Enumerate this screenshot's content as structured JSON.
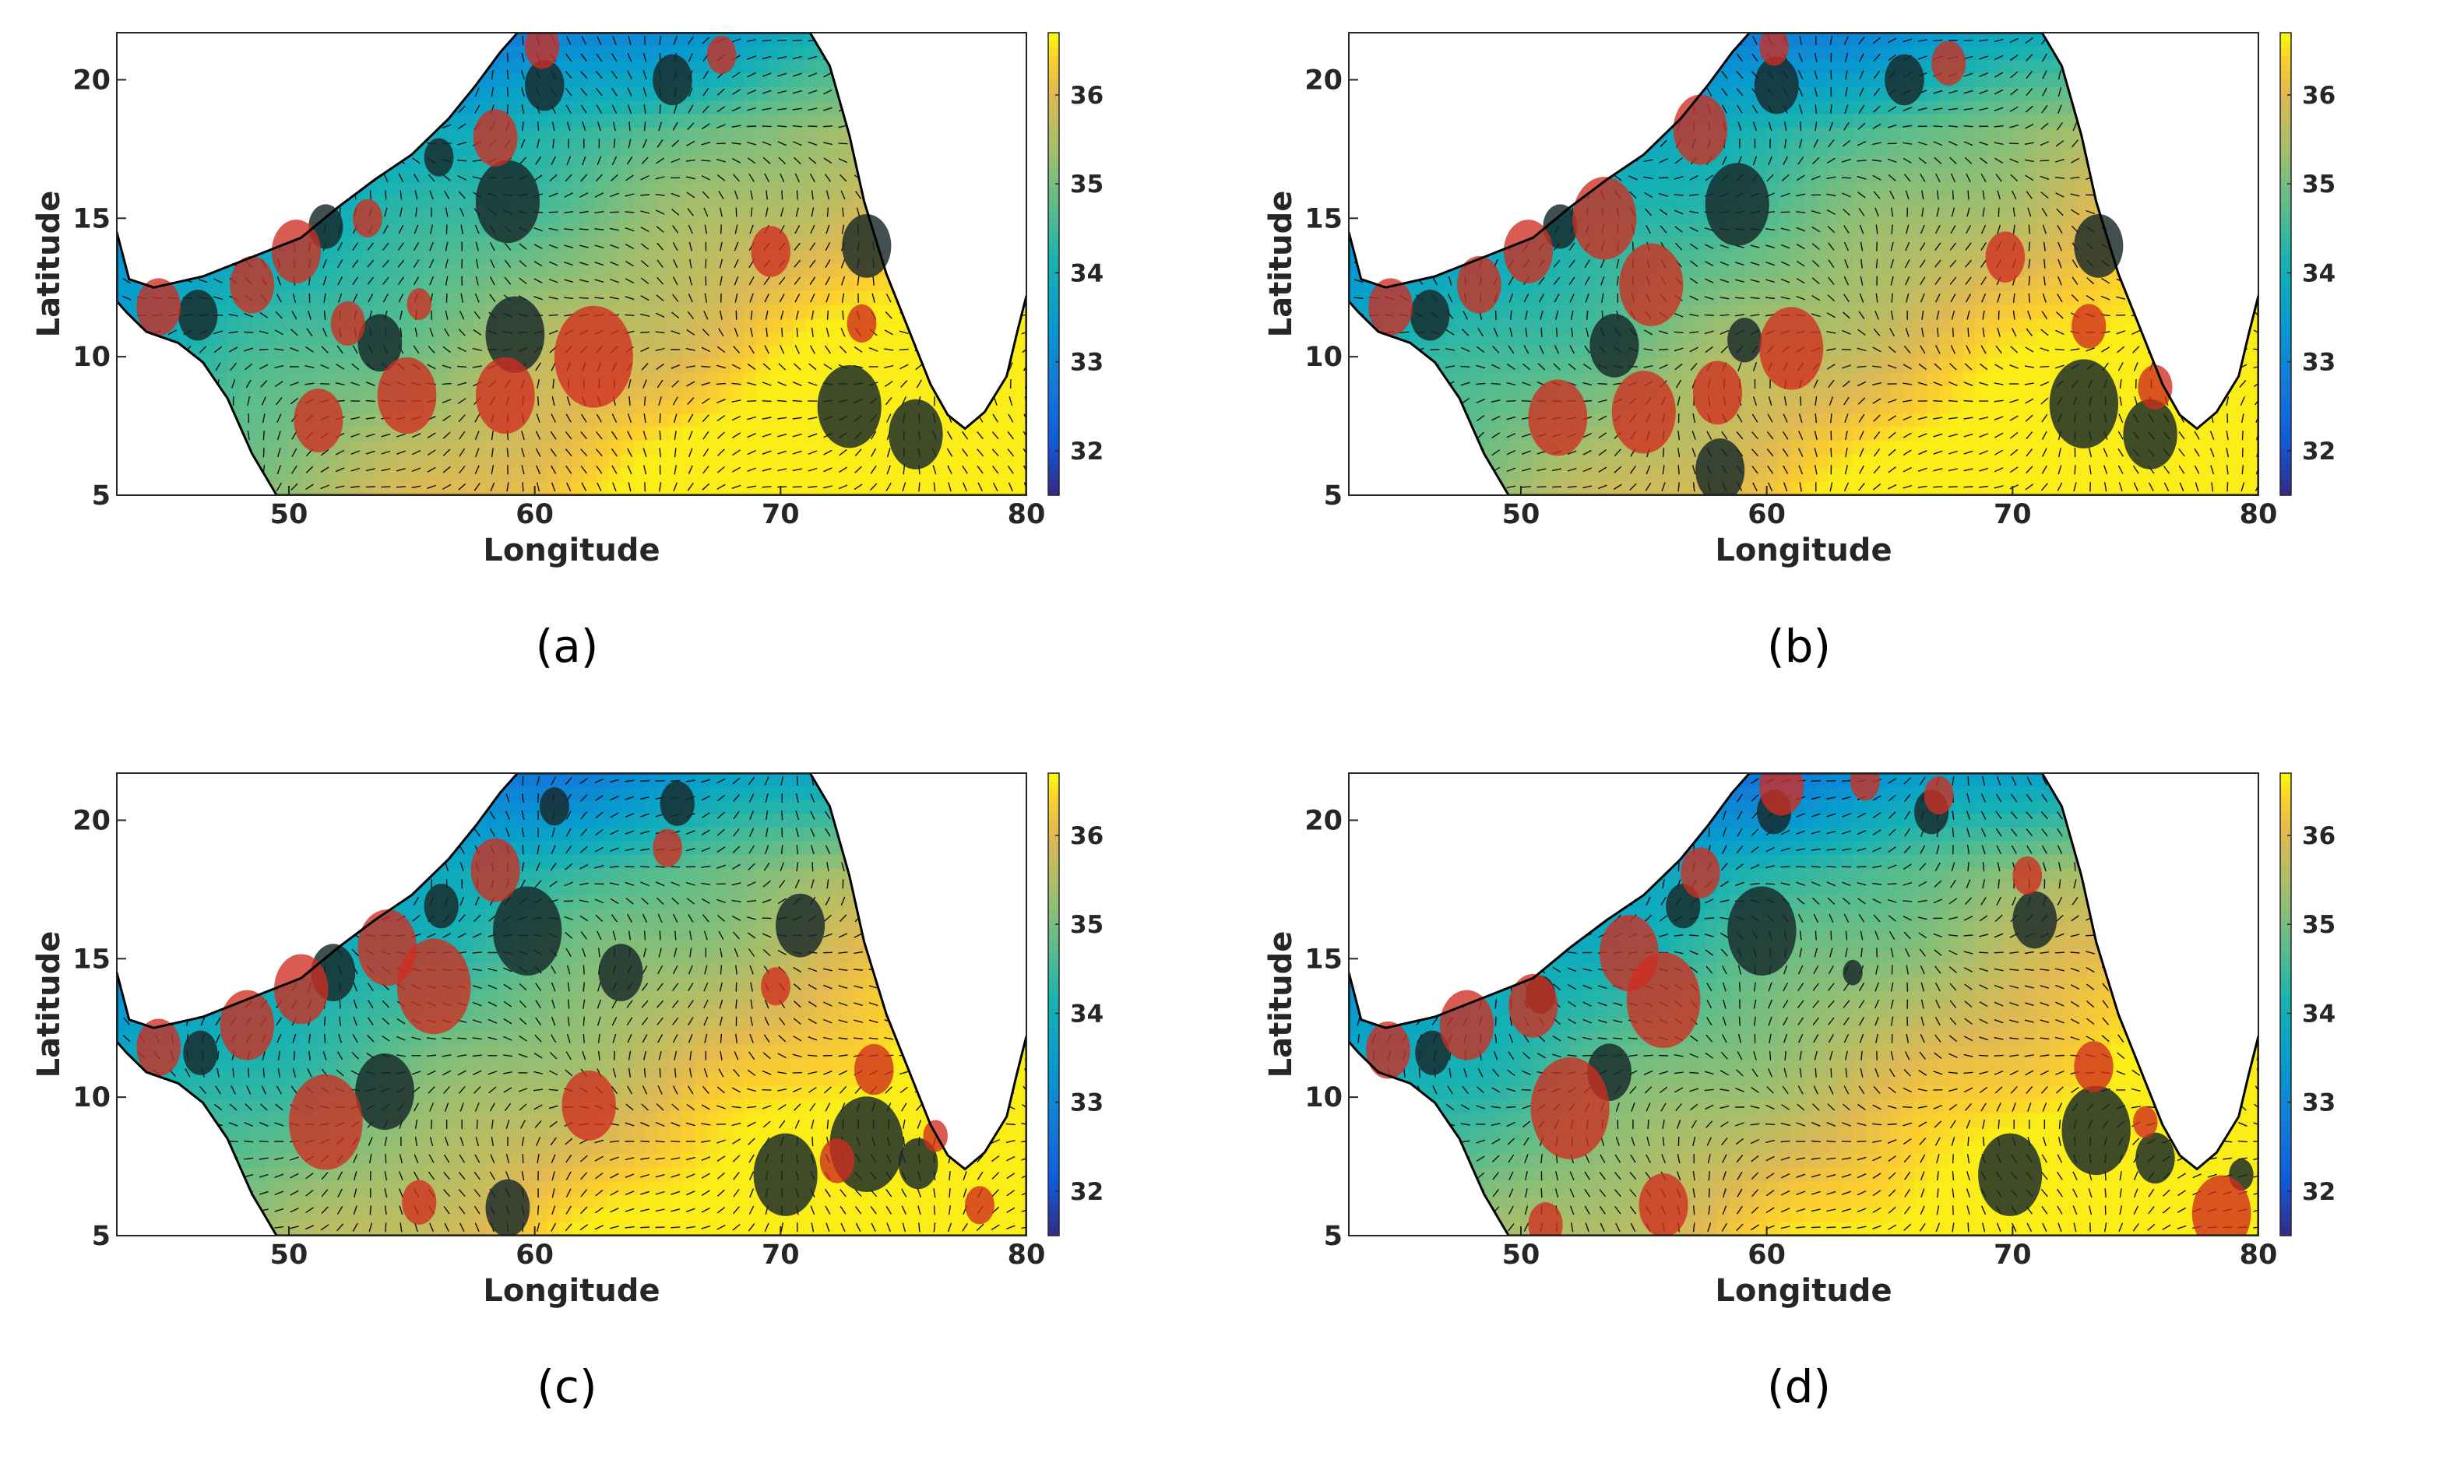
{
  "figure": {
    "colormap_name": "parula",
    "land_color": "#ffffff",
    "coast_color": "#000000",
    "warm_eddy_color": "#d02d20",
    "cold_eddy_color": "#17282a"
  },
  "chart_data": [
    {
      "type": "heatmap",
      "panel_label": "(a)",
      "xlabel": "Longitude",
      "ylabel": "Latitude",
      "xlim": [
        43,
        80
      ],
      "ylim": [
        5,
        21.7
      ],
      "xticks": [
        "50",
        "60",
        "70",
        "80"
      ],
      "yticks": [
        "5",
        "10",
        "15",
        "20"
      ],
      "colorbar_ticks": [
        "32",
        "33",
        "34",
        "35",
        "36"
      ],
      "colorbar_range": [
        31.5,
        36.7
      ],
      "warm_eddies": [
        [
          44.7,
          11.8,
          0.9
        ],
        [
          48.5,
          12.6,
          0.9
        ],
        [
          50.3,
          13.8,
          1.0
        ],
        [
          51.2,
          7.7,
          1.0
        ],
        [
          52.4,
          11.2,
          0.7
        ],
        [
          53.2,
          15.0,
          0.6
        ],
        [
          55.3,
          11.9,
          0.5
        ],
        [
          54.8,
          8.6,
          1.2
        ],
        [
          58.4,
          17.9,
          0.9
        ],
        [
          58.8,
          8.6,
          1.2
        ],
        [
          62.4,
          10.0,
          1.6
        ],
        [
          60.3,
          21.2,
          0.7
        ],
        [
          67.6,
          20.9,
          0.6
        ],
        [
          69.6,
          13.8,
          0.8
        ],
        [
          73.3,
          11.2,
          0.6
        ]
      ],
      "cold_eddies": [
        [
          46.3,
          11.5,
          0.8
        ],
        [
          51.5,
          14.7,
          0.7
        ],
        [
          53.7,
          10.5,
          0.9
        ],
        [
          56.1,
          17.2,
          0.6
        ],
        [
          58.9,
          15.6,
          1.3
        ],
        [
          59.2,
          10.8,
          1.2
        ],
        [
          60.4,
          19.8,
          0.8
        ],
        [
          65.6,
          20.0,
          0.8
        ],
        [
          73.5,
          14.0,
          1.0
        ],
        [
          72.8,
          8.2,
          1.3
        ],
        [
          75.5,
          7.2,
          1.1
        ]
      ]
    },
    {
      "type": "heatmap",
      "panel_label": "(b)",
      "xlabel": "Longitude",
      "ylabel": "Latitude",
      "xlim": [
        43,
        80
      ],
      "ylim": [
        5,
        21.7
      ],
      "xticks": [
        "50",
        "60",
        "70",
        "80"
      ],
      "yticks": [
        "5",
        "10",
        "15",
        "20"
      ],
      "colorbar_ticks": [
        "32",
        "33",
        "34",
        "35",
        "36"
      ],
      "colorbar_range": [
        31.5,
        36.7
      ],
      "warm_eddies": [
        [
          44.7,
          11.8,
          0.9
        ],
        [
          48.3,
          12.6,
          0.9
        ],
        [
          50.3,
          13.8,
          1.0
        ],
        [
          51.5,
          7.8,
          1.2
        ],
        [
          53.4,
          15.0,
          1.3
        ],
        [
          55.3,
          12.6,
          1.3
        ],
        [
          55.0,
          8.0,
          1.3
        ],
        [
          57.3,
          18.2,
          1.1
        ],
        [
          58.0,
          8.7,
          1.0
        ],
        [
          61.0,
          10.3,
          1.3
        ],
        [
          60.3,
          21.2,
          0.6
        ],
        [
          67.4,
          20.6,
          0.7
        ],
        [
          69.7,
          13.6,
          0.8
        ],
        [
          73.1,
          11.1,
          0.7
        ],
        [
          75.8,
          8.9,
          0.7
        ]
      ],
      "cold_eddies": [
        [
          46.3,
          11.5,
          0.8
        ],
        [
          51.6,
          14.7,
          0.7
        ],
        [
          53.8,
          10.4,
          1.0
        ],
        [
          58.8,
          15.5,
          1.3
        ],
        [
          59.1,
          10.6,
          0.7
        ],
        [
          60.4,
          19.8,
          0.9
        ],
        [
          65.6,
          20.0,
          0.8
        ],
        [
          73.5,
          14.0,
          1.0
        ],
        [
          72.9,
          8.3,
          1.4
        ],
        [
          75.6,
          7.2,
          1.1
        ],
        [
          58.1,
          5.9,
          1.0
        ]
      ]
    },
    {
      "type": "heatmap",
      "panel_label": "(c)",
      "xlabel": "Longitude",
      "ylabel": "Latitude",
      "xlim": [
        43,
        80
      ],
      "ylim": [
        5,
        21.7
      ],
      "xticks": [
        "50",
        "60",
        "70",
        "80"
      ],
      "yticks": [
        "5",
        "10",
        "15",
        "20"
      ],
      "colorbar_ticks": [
        "32",
        "33",
        "34",
        "35",
        "36"
      ],
      "colorbar_range": [
        31.5,
        36.7
      ],
      "warm_eddies": [
        [
          44.7,
          11.8,
          0.9
        ],
        [
          48.3,
          12.6,
          1.1
        ],
        [
          50.5,
          13.9,
          1.1
        ],
        [
          51.5,
          9.1,
          1.5
        ],
        [
          54.0,
          15.4,
          1.2
        ],
        [
          55.9,
          14.0,
          1.5
        ],
        [
          55.3,
          6.2,
          0.7
        ],
        [
          58.4,
          18.2,
          1.0
        ],
        [
          62.2,
          9.7,
          1.1
        ],
        [
          65.4,
          19.0,
          0.6
        ],
        [
          69.8,
          14.0,
          0.6
        ],
        [
          73.8,
          11.0,
          0.8
        ],
        [
          72.3,
          7.7,
          0.7
        ],
        [
          76.3,
          8.6,
          0.5
        ],
        [
          78.1,
          6.1,
          0.6
        ]
      ],
      "cold_eddies": [
        [
          46.4,
          11.6,
          0.7
        ],
        [
          51.8,
          14.5,
          0.9
        ],
        [
          53.9,
          10.2,
          1.2
        ],
        [
          56.2,
          16.9,
          0.7
        ],
        [
          59.7,
          16.0,
          1.4
        ],
        [
          63.5,
          14.5,
          0.9
        ],
        [
          60.8,
          20.5,
          0.6
        ],
        [
          65.8,
          20.6,
          0.7
        ],
        [
          70.8,
          16.2,
          1.0
        ],
        [
          73.5,
          8.3,
          1.5
        ],
        [
          70.2,
          7.2,
          1.3
        ],
        [
          75.6,
          7.6,
          0.8
        ],
        [
          58.9,
          6.0,
          0.9
        ]
      ]
    },
    {
      "type": "heatmap",
      "panel_label": "(d)",
      "xlabel": "Longitude",
      "ylabel": "Latitude",
      "xlim": [
        43,
        80
      ],
      "ylim": [
        5,
        21.7
      ],
      "xticks": [
        "50",
        "60",
        "70",
        "80"
      ],
      "yticks": [
        "5",
        "10",
        "15",
        "20"
      ],
      "colorbar_ticks": [
        "32",
        "33",
        "34",
        "35",
        "36"
      ],
      "colorbar_range": [
        31.5,
        36.7
      ],
      "warm_eddies": [
        [
          44.6,
          11.7,
          0.9
        ],
        [
          47.8,
          12.6,
          1.1
        ],
        [
          50.5,
          13.3,
          1.0
        ],
        [
          52.0,
          9.6,
          1.6
        ],
        [
          54.4,
          15.2,
          1.2
        ],
        [
          55.8,
          13.5,
          1.5
        ],
        [
          55.8,
          6.1,
          1.0
        ],
        [
          57.3,
          18.1,
          0.8
        ],
        [
          51.0,
          5.4,
          0.7
        ],
        [
          60.6,
          21.2,
          0.9
        ],
        [
          64.0,
          21.4,
          0.6
        ],
        [
          67.0,
          20.9,
          0.6
        ],
        [
          70.6,
          18.0,
          0.6
        ],
        [
          73.3,
          11.1,
          0.8
        ],
        [
          75.4,
          9.1,
          0.5
        ],
        [
          78.5,
          5.8,
          1.2
        ]
      ],
      "cold_eddies": [
        [
          46.4,
          11.6,
          0.7
        ],
        [
          50.8,
          13.7,
          0.6
        ],
        [
          53.6,
          10.9,
          0.9
        ],
        [
          56.6,
          16.9,
          0.7
        ],
        [
          59.8,
          16.0,
          1.4
        ],
        [
          63.5,
          14.5,
          0.4
        ],
        [
          60.3,
          20.3,
          0.7
        ],
        [
          66.7,
          20.3,
          0.7
        ],
        [
          70.9,
          16.4,
          0.9
        ],
        [
          73.4,
          8.8,
          1.4
        ],
        [
          69.9,
          7.2,
          1.3
        ],
        [
          75.8,
          7.8,
          0.8
        ],
        [
          79.3,
          7.2,
          0.5
        ]
      ]
    }
  ]
}
